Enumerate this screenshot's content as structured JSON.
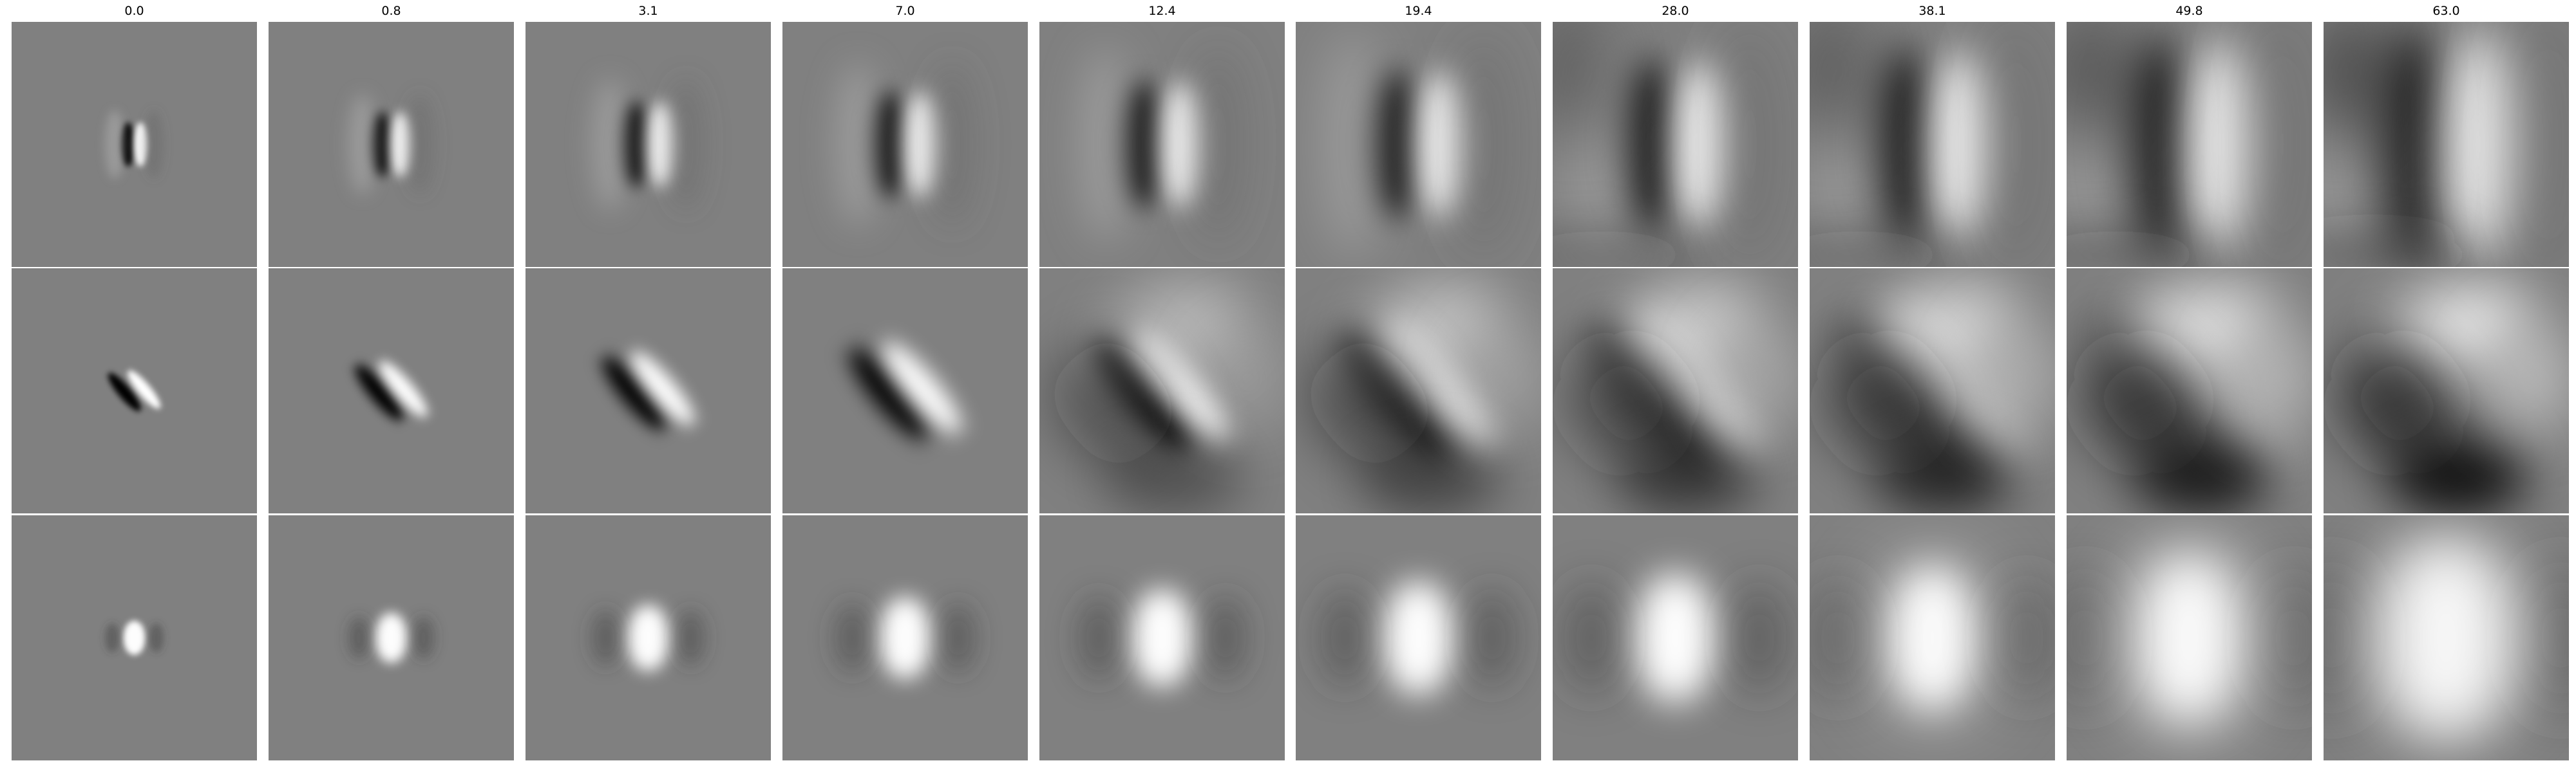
{
  "figure": {
    "column_titles": [
      "0.0",
      "0.8",
      "3.1",
      "7.0",
      "12.4",
      "19.4",
      "28.0",
      "38.1",
      "49.8",
      "63.0"
    ],
    "rows": [
      {
        "pattern": "vertical-edge",
        "values": [
          0.0,
          0.8,
          3.1,
          7.0,
          12.4,
          19.4,
          28.0,
          38.1,
          49.8,
          63.0
        ]
      },
      {
        "pattern": "diagonal-edge",
        "values": [
          0.0,
          0.8,
          3.1,
          7.0,
          12.4,
          19.4,
          28.0,
          38.1,
          49.8,
          63.0
        ]
      },
      {
        "pattern": "center-blob",
        "values": [
          0.0,
          0.8,
          3.1,
          7.0,
          12.4,
          19.4,
          28.0,
          38.1,
          49.8,
          63.0
        ]
      }
    ],
    "colors": {
      "background": "#ffffff",
      "neutral_gray": "#808080",
      "dark": "#000000",
      "light": "#ffffff"
    }
  }
}
